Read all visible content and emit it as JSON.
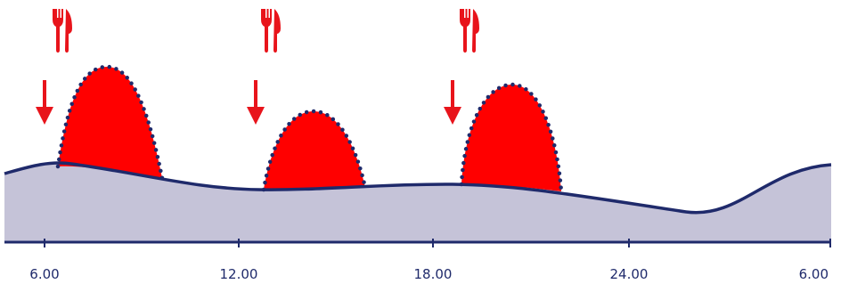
{
  "axis": {
    "ticks": [
      "6.00",
      "12.00",
      "18.00",
      "24.00",
      "6.00"
    ]
  }
}
